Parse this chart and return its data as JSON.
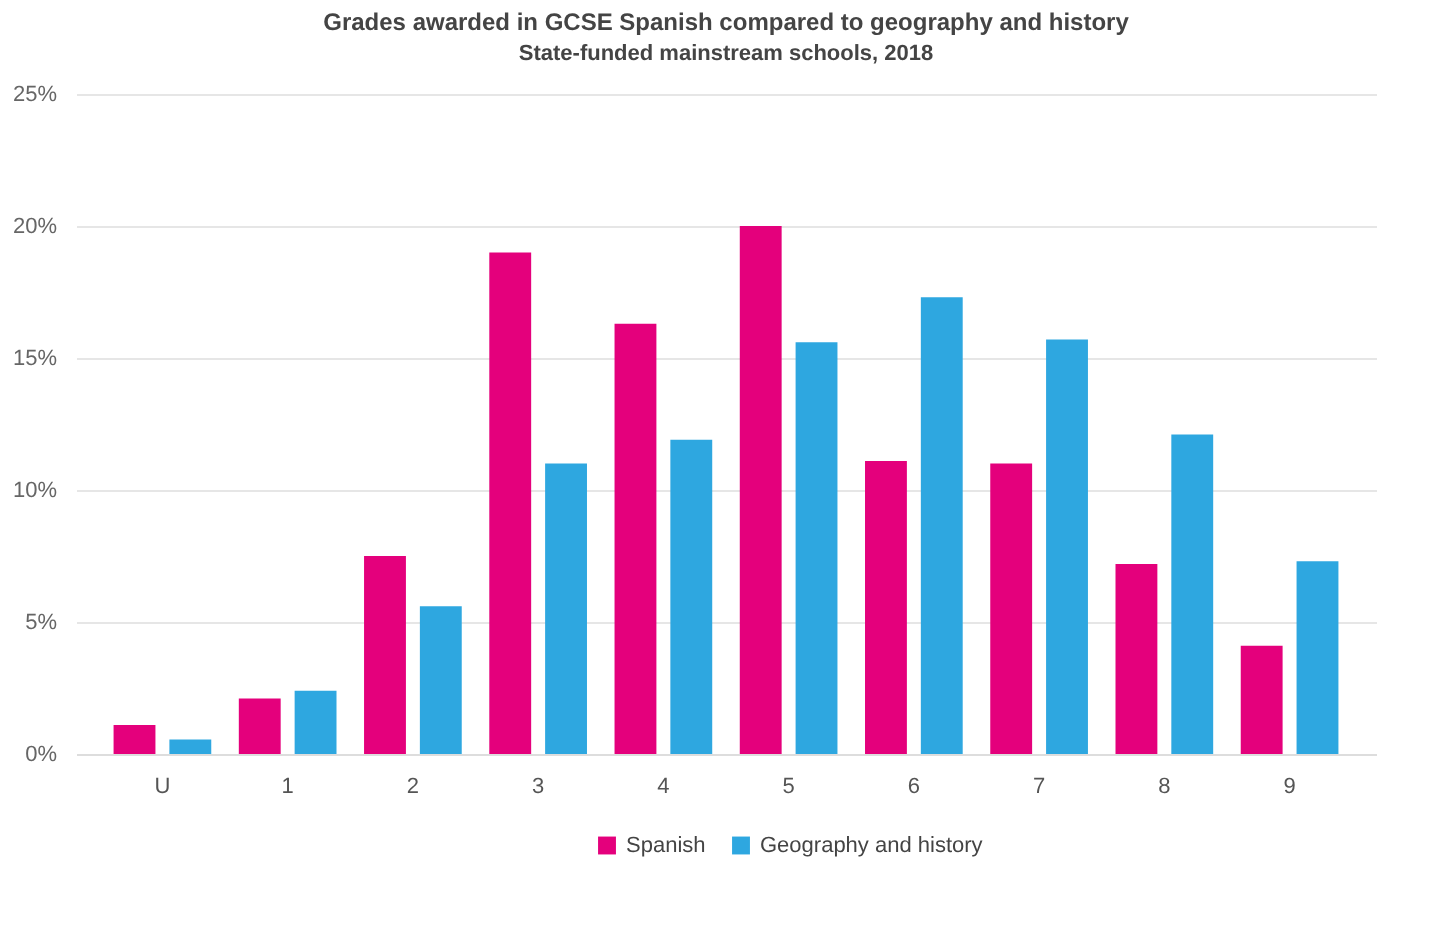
{
  "chart_data": {
    "type": "bar",
    "title": "Grades awarded in GCSE Spanish compared to geography and history",
    "subtitle": "State-funded mainstream schools, 2018",
    "categories": [
      "U",
      "1",
      "2",
      "3",
      "4",
      "5",
      "6",
      "7",
      "8",
      "9"
    ],
    "series": [
      {
        "name": "Spanish",
        "color": "#e4007c",
        "values": [
          1.1,
          2.1,
          7.5,
          19.0,
          16.3,
          20.0,
          11.1,
          11.0,
          7.2,
          4.1
        ]
      },
      {
        "name": "Geography and history",
        "color": "#2ea7e0",
        "values": [
          0.55,
          2.4,
          5.6,
          11.0,
          11.9,
          15.6,
          17.3,
          15.7,
          12.1,
          7.3
        ]
      }
    ],
    "ylim": [
      0,
      25
    ],
    "yticks": [
      {
        "value": 0,
        "label": "0%"
      },
      {
        "value": 5,
        "label": "5%"
      },
      {
        "value": 10,
        "label": "10%"
      },
      {
        "value": 15,
        "label": "15%"
      },
      {
        "value": 20,
        "label": "20%"
      },
      {
        "value": 25,
        "label": "25%"
      }
    ],
    "grid": "y",
    "legend": "bottom"
  }
}
